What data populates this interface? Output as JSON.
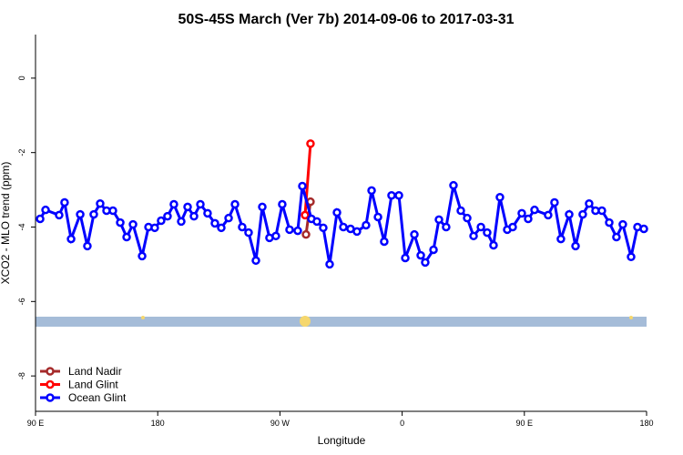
{
  "chart_data": {
    "type": "line",
    "title": "50S-45S March (Ver 7b)   2014-09-06 to 2017-03-31",
    "x_label": "Longitude",
    "y_label": "XCO2 - MLO trend (ppm)",
    "xlim": [
      90,
      540
    ],
    "xticks": [
      {
        "value": 90,
        "label": "90 E"
      },
      180,
      {
        "value": 270,
        "label": "90 W"
      },
      {
        "value": 360,
        "label": "0"
      },
      {
        "value": 450,
        "label": "90 E"
      },
      {
        "value": 540,
        "label": "180"
      }
    ],
    "ylim": [
      -8.95,
      1.17
    ],
    "yticks": [
      0,
      -2,
      -4,
      -6,
      -8
    ],
    "legend": "bottom-left",
    "series": [
      {
        "name": "Land Nadir",
        "color": "#a52a2a",
        "x": [
          289.2,
          292.5
        ],
        "values": [
          -4.2,
          -3.32
        ]
      },
      {
        "name": "Land Glint",
        "color": "#ff0000",
        "x": [
          288.5,
          292.5
        ],
        "values": [
          -3.68,
          -1.76
        ]
      },
      {
        "name": "Ocean Glint",
        "color": "#0000ff",
        "x": [
          93.4,
          97.4,
          107.4,
          111.4,
          116.2,
          122.9,
          128.2,
          132.9,
          137.6,
          142.3,
          147.0,
          152.4,
          157.1,
          161.8,
          168.5,
          173.2,
          177.8,
          182.5,
          187.2,
          191.9,
          197.3,
          202.0,
          206.7,
          211.4,
          216.7,
          222.1,
          226.8,
          232.2,
          236.9,
          242.2,
          246.9,
          252.3,
          257.0,
          262.3,
          267.0,
          271.7,
          277.1,
          283.1,
          286.5,
          293.2,
          297.2,
          301.9,
          306.6,
          312.0,
          316.7,
          322.0,
          326.7,
          333.4,
          337.5,
          342.2,
          346.8,
          352.2,
          357.6,
          362.3,
          369.0,
          373.7,
          377.0,
          383.1,
          387.1,
          392.4,
          397.8,
          403.2,
          407.9,
          412.6,
          418.0,
          422.6,
          427.3,
          432.0,
          437.4,
          441.4,
          448.1,
          452.8,
          457.5,
          467.5,
          472.2,
          476.9,
          483.0,
          487.7,
          493.0,
          497.7,
          502.4,
          507.1,
          512.5,
          517.8,
          522.5,
          528.6,
          533.3,
          538.0
        ],
        "values": [
          -3.78,
          -3.54,
          -3.68,
          -3.34,
          -4.32,
          -3.66,
          -4.51,
          -3.66,
          -3.37,
          -3.56,
          -3.56,
          -3.88,
          -4.27,
          -3.93,
          -4.78,
          -4.0,
          -4.02,
          -3.83,
          -3.71,
          -3.39,
          -3.85,
          -3.46,
          -3.71,
          -3.39,
          -3.63,
          -3.9,
          -4.02,
          -3.76,
          -3.39,
          -4.0,
          -4.15,
          -4.9,
          -3.46,
          -4.29,
          -4.24,
          -3.39,
          -4.07,
          -4.1,
          -2.9,
          -3.78,
          -3.85,
          -4.02,
          -5.0,
          -3.61,
          -4.0,
          -4.05,
          -4.12,
          -3.95,
          -3.02,
          -3.73,
          -4.39,
          -3.15,
          -3.15,
          -4.83,
          -4.2,
          -4.76,
          -4.95,
          -4.61,
          -3.8,
          -4.0,
          -2.88,
          -3.56,
          -3.76,
          -4.24,
          -4.0,
          -4.15,
          -4.49,
          -3.2,
          -4.07,
          -4.0,
          -3.63,
          -3.78,
          -3.54,
          -3.68,
          -3.34,
          -4.32,
          -3.66,
          -4.51,
          -3.66,
          -3.37,
          -3.56,
          -3.56,
          -3.88,
          -4.27,
          -3.93,
          -4.8,
          -4.0,
          -4.05
        ]
      }
    ]
  }
}
